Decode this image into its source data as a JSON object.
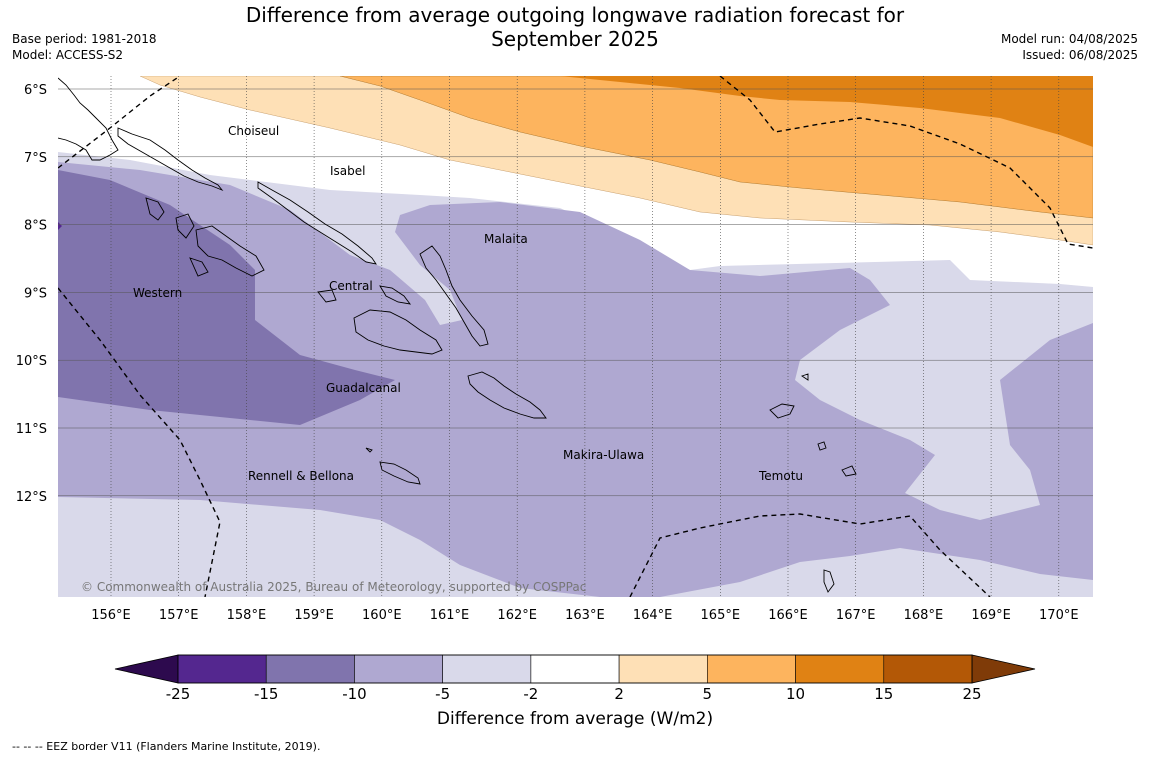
{
  "title": {
    "line1": "Difference from average outgoing longwave radiation forecast for",
    "line2": "September 2025"
  },
  "meta_left": {
    "base_period": "Base period: 1981-2018",
    "model": "Model: ACCESS-S2"
  },
  "meta_right": {
    "model_run": "Model run: 04/08/2025",
    "issued": "Issued: 06/08/2025"
  },
  "copyright": "© Commonwealth of Australia 2025, Bureau of Meteorology, supported by COSPPac",
  "map": {
    "lon_ticks": [
      "156°E",
      "157°E",
      "158°E",
      "159°E",
      "160°E",
      "161°E",
      "162°E",
      "163°E",
      "164°E",
      "165°E",
      "166°E",
      "167°E",
      "168°E",
      "169°E",
      "170°E"
    ],
    "lat_ticks": [
      "6°S",
      "7°S",
      "8°S",
      "9°S",
      "10°S",
      "11°S",
      "12°S"
    ],
    "regions": [
      "Choiseul",
      "Isabel",
      "Malaita",
      "Western",
      "Central",
      "Guadalcanal",
      "Makira-Ulawa",
      "Temotu",
      "Rennell & Bellona"
    ],
    "colors": {
      "neg25": "#2d0a4e",
      "neg15": "#54278f",
      "neg10": "#8074ad",
      "neg5": "#afa8d1",
      "neg2": "#d9d9ea",
      "zero": "#ffffff",
      "pos2": "#fee0b6",
      "pos5": "#fdb45e",
      "pos10": "#e08214",
      "pos15": "#b35806",
      "pos25": "#7f3b08"
    }
  },
  "colorbar": {
    "ticks": [
      "-25",
      "-15",
      "-10",
      "-5",
      "-2",
      "2",
      "5",
      "10",
      "15",
      "25"
    ],
    "colors": [
      "#54278f",
      "#8074ad",
      "#afa8d1",
      "#d9d9ea",
      "#ffffff",
      "#fee0b6",
      "#fdb45e",
      "#e08214",
      "#b35806"
    ],
    "extend_low": "#2d0a4e",
    "extend_high": "#7f3b08",
    "label": "Difference from average (W/m2)"
  },
  "footnote": "-- -- -- EEZ border V11 (Flanders Marine Institute, 2019)."
}
